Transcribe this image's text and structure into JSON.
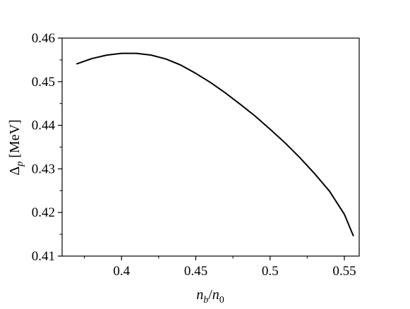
{
  "chart_data": {
    "type": "line",
    "title": "",
    "xlabel": {
      "main": "n",
      "sub1": "b",
      "slash": "/",
      "main2": "n",
      "sub2": "0"
    },
    "ylabel": {
      "main": "Δ",
      "sub": "p",
      "unit": " [MeV]"
    },
    "xlim": [
      0.36,
      0.56
    ],
    "ylim": [
      0.41,
      0.46
    ],
    "xticks": [
      0.4,
      0.45,
      0.5,
      0.55
    ],
    "xtick_labels": [
      "0.4",
      "0.45",
      "0.5",
      "0.55"
    ],
    "yticks": [
      0.41,
      0.42,
      0.43,
      0.44,
      0.45,
      0.46
    ],
    "ytick_labels": [
      "0.41",
      "0.42",
      "0.43",
      "0.44",
      "0.45",
      "0.46"
    ],
    "grid": false,
    "series": [
      {
        "color": "#000000",
        "x": [
          0.37,
          0.38,
          0.39,
          0.4,
          0.41,
          0.42,
          0.43,
          0.44,
          0.45,
          0.46,
          0.47,
          0.48,
          0.49,
          0.5,
          0.51,
          0.52,
          0.53,
          0.54,
          0.55,
          0.556
        ],
        "y": [
          0.4541,
          0.4553,
          0.4561,
          0.4565,
          0.4565,
          0.4561,
          0.4552,
          0.4538,
          0.4519,
          0.4498,
          0.4474,
          0.4448,
          0.4421,
          0.4391,
          0.436,
          0.4326,
          0.4289,
          0.4249,
          0.4196,
          0.4147
        ]
      }
    ]
  }
}
